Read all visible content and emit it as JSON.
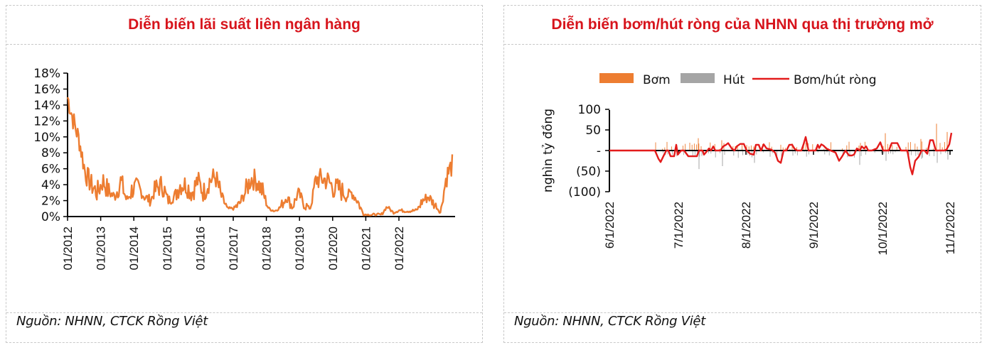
{
  "left_panel": {
    "title": "Diễn biến lãi suất liên ngân hàng",
    "source": "Nguồn: NHNN, CTCK Rồng Việt"
  },
  "right_panel": {
    "title": "Diễn biến bơm/hút ròng của NHNN qua thị trường mở",
    "source": "Nguồn:  NHNN, CTCK Rồng Việt"
  },
  "colors": {
    "title": "#d7141c",
    "interbank_line": "#ed7d31",
    "bom": "#ed7d31",
    "hut": "#a5a5a5",
    "net_line": "#e31b1b"
  },
  "chart_data": [
    {
      "type": "line",
      "title": "Diễn biến lãi suất liên ngân hàng",
      "xlabel": "",
      "ylabel": "",
      "ylim": [
        0,
        18
      ],
      "yticks": [
        "0%",
        "2%",
        "4%",
        "6%",
        "8%",
        "10%",
        "12%",
        "14%",
        "16%",
        "18%"
      ],
      "xticks": [
        "01/2012",
        "01/2013",
        "01/2014",
        "01/2015",
        "01/2016",
        "01/2017",
        "01/2018",
        "01/2019",
        "01/2020",
        "01/2021",
        "01/2022"
      ],
      "grid": false,
      "series": [
        {
          "name": "Lãi suất liên ngân hàng",
          "x": [
            "01/2012",
            "03/2012",
            "05/2012",
            "07/2012",
            "09/2012",
            "11/2012",
            "01/2013",
            "03/2013",
            "05/2013",
            "07/2013",
            "09/2013",
            "11/2013",
            "01/2014",
            "03/2014",
            "05/2014",
            "07/2014",
            "09/2014",
            "11/2014",
            "01/2015",
            "03/2015",
            "05/2015",
            "07/2015",
            "09/2015",
            "11/2015",
            "01/2016",
            "03/2016",
            "05/2016",
            "07/2016",
            "09/2016",
            "11/2016",
            "01/2017",
            "03/2017",
            "05/2017",
            "07/2017",
            "09/2017",
            "11/2017",
            "01/2018",
            "03/2018",
            "05/2018",
            "07/2018",
            "09/2018",
            "11/2018",
            "01/2019",
            "03/2019",
            "05/2019",
            "07/2019",
            "09/2019",
            "11/2019",
            "01/2020",
            "03/2020",
            "05/2020",
            "07/2020",
            "09/2020",
            "11/2020",
            "01/2021",
            "03/2021",
            "05/2021",
            "07/2021",
            "09/2021",
            "11/2021",
            "01/2022",
            "03/2022",
            "05/2022",
            "07/2022",
            "09/2022",
            "10/2022"
          ],
          "values": [
            15.0,
            12.0,
            9.5,
            5.5,
            4.0,
            3.0,
            4.5,
            3.0,
            2.5,
            4.5,
            2.0,
            3.5,
            3.5,
            2.5,
            2.0,
            3.5,
            4.0,
            2.0,
            2.5,
            4.0,
            4.0,
            3.0,
            4.5,
            3.0,
            4.5,
            5.0,
            2.5,
            1.0,
            1.0,
            1.5,
            3.0,
            4.8,
            4.5,
            3.0,
            1.0,
            0.7,
            1.2,
            2.5,
            1.2,
            3.0,
            1.5,
            1.0,
            4.7,
            4.7,
            4.5,
            3.5,
            3.5,
            2.5,
            3.0,
            2.0,
            0.3,
            0.2,
            0.2,
            0.2,
            1.3,
            0.5,
            0.8,
            0.7,
            0.7,
            0.8,
            2.0,
            2.5,
            1.5,
            0.5,
            5.0,
            6.5
          ]
        }
      ]
    },
    {
      "type": "bar",
      "title": "Diễn biến bơm/hút ròng của NHNN qua thị trường mở",
      "xlabel": "",
      "ylabel": "nghìn tỷ đồng",
      "ylim": [
        -100,
        100
      ],
      "yticks": [
        "(100)",
        "(50)",
        "-",
        "50",
        "100"
      ],
      "xticks": [
        "6/1/2022",
        "7/1/2022",
        "8/1/2022",
        "9/1/2022",
        "10/1/2022",
        "11/1/2022"
      ],
      "legend": [
        "Bơm",
        "Hút",
        "Bơm/hút ròng"
      ],
      "legend_position": "top",
      "grid": false,
      "series": [
        {
          "name": "Bơm/hút ròng",
          "type": "line",
          "x": [
            "6/1",
            "6/8",
            "6/15",
            "6/20",
            "6/22",
            "6/25",
            "6/28",
            "7/1",
            "7/5",
            "7/10",
            "7/15",
            "7/20",
            "7/25",
            "8/1",
            "8/5",
            "8/10",
            "8/15",
            "8/20",
            "8/25",
            "9/1",
            "9/5",
            "9/10",
            "9/15",
            "9/20",
            "9/25",
            "10/1",
            "10/5",
            "10/10",
            "10/15",
            "10/20",
            "10/25",
            "10/28",
            "11/1",
            "11/2"
          ],
          "values": [
            0,
            0,
            0,
            0,
            -28,
            -5,
            -12,
            0,
            -15,
            -10,
            5,
            18,
            15,
            0,
            -10,
            15,
            8,
            0,
            -35,
            0,
            15,
            5,
            32,
            0,
            12,
            -5,
            -28,
            -10,
            12,
            0,
            22,
            -55,
            28,
            42
          ]
        },
        {
          "name": "Bơm",
          "type": "bar",
          "x": [
            "6/20",
            "7/1",
            "7/10",
            "7/20",
            "8/5",
            "8/15",
            "9/5",
            "9/10",
            "10/15",
            "10/28",
            "11/1"
          ],
          "values": [
            15,
            30,
            20,
            18,
            15,
            15,
            20,
            32,
            30,
            65,
            45
          ]
        },
        {
          "name": "Hút",
          "type": "bar",
          "x": [
            "6/22",
            "7/1",
            "7/5",
            "8/10",
            "8/18",
            "9/20",
            "10/5",
            "10/20",
            "10/25",
            "11/1"
          ],
          "values": [
            -30,
            -45,
            -25,
            -15,
            -35,
            -30,
            -25,
            -20,
            -30,
            -20
          ]
        }
      ]
    }
  ]
}
